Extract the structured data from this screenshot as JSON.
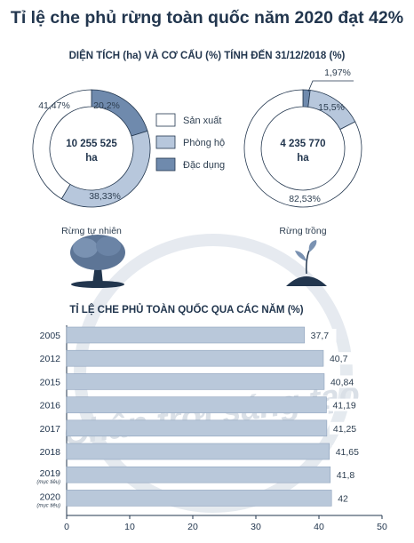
{
  "title": "Tỉ lệ che phủ rừng toàn quốc năm 2020 đạt 42%",
  "colors": {
    "san_xuat": "#ffffff",
    "phong_ho": "#b7c7dc",
    "dac_dung": "#6f8aad",
    "bar": "#b9c8da",
    "bar_edge": "#8fa3bd",
    "dark": "#22364e"
  },
  "icons": [
    "tree-icon",
    "seedling-icon"
  ],
  "watermark": "Chân trời sáng tạo",
  "chart_data": [
    {
      "type": "pie",
      "title": "DIỆN TÍCH (ha) VÀ CƠ CẤU (%) TÍNH ĐẾN 31/12/2018 (%)",
      "legend": [
        "Sản xuất",
        "Phòng hộ",
        "Đặc dụng"
      ],
      "donuts": [
        {
          "name": "Rừng tự nhiên",
          "center_value": "10 255 525",
          "center_unit": "ha",
          "slices": [
            {
              "label": "Sản xuất",
              "value": 41.47,
              "text": "41,47%"
            },
            {
              "label": "Phòng hộ",
              "value": 38.33,
              "text": "38,33%"
            },
            {
              "label": "Đặc dụng",
              "value": 20.2,
              "text": "20,2%"
            }
          ]
        },
        {
          "name": "Rừng trồng",
          "center_value": "4 235 770",
          "center_unit": "ha",
          "slices": [
            {
              "label": "Sản xuất",
              "value": 82.53,
              "text": "82,53%"
            },
            {
              "label": "Phòng hộ",
              "value": 15.5,
              "text": "15,5%"
            },
            {
              "label": "Đặc dụng",
              "value": 1.97,
              "text": "1,97%"
            }
          ]
        }
      ]
    },
    {
      "type": "bar",
      "orientation": "horizontal",
      "title": "TỈ LỆ CHE PHỦ TOÀN QUỐC QUA CÁC NĂM (%)",
      "categories": [
        "2005",
        "2012",
        "2015",
        "2016",
        "2017",
        "2018",
        "2019",
        "2020"
      ],
      "notes": [
        "",
        "",
        "",
        "",
        "",
        "",
        "(mục tiêu)",
        "(mục tiêu)"
      ],
      "values": [
        37.7,
        40.7,
        40.84,
        41.19,
        41.25,
        41.65,
        41.8,
        42
      ],
      "value_labels": [
        "37,7",
        "40,7",
        "40,84",
        "41,19",
        "41,25",
        "41,65",
        "41,8",
        "42"
      ],
      "xlim": [
        0,
        50
      ],
      "xticks": [
        "0",
        "10",
        "20",
        "30",
        "40",
        "50"
      ]
    }
  ]
}
